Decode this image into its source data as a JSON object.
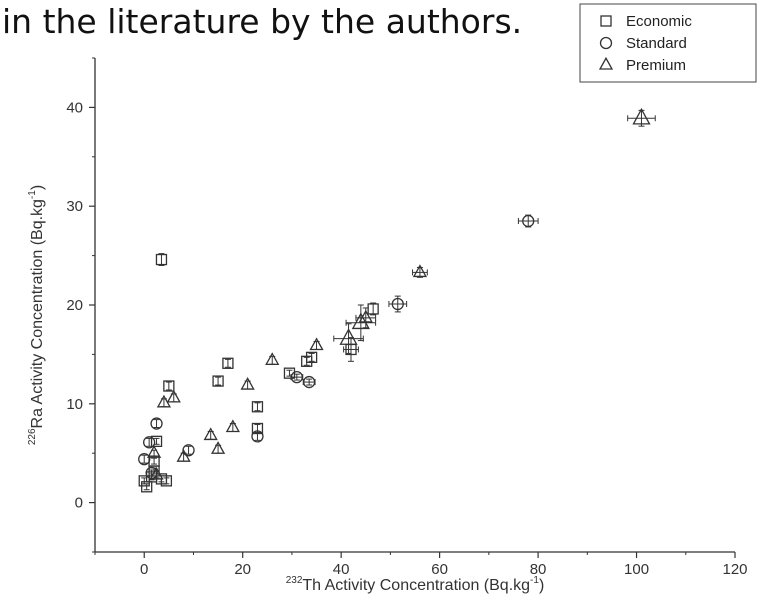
{
  "page": {
    "caption": "in the literature by the authors."
  },
  "chart_data": {
    "type": "scatter",
    "xlabel": {
      "sup": "232",
      "text": "Th Activity Concentration (Bq.kg",
      "unit_sup": "-1",
      "close": ")"
    },
    "ylabel": {
      "sup": "226",
      "text": "Ra Activity Concentration (Bq.kg",
      "unit_sup": "-1",
      "close": ")"
    },
    "xlim": [
      -10,
      120
    ],
    "ylim": [
      -5,
      45
    ],
    "xticks": [
      0,
      20,
      40,
      60,
      80,
      100,
      120
    ],
    "yticks": [
      0,
      10,
      20,
      30,
      40
    ],
    "legend_position": "top-right",
    "series": [
      {
        "name": "Economic",
        "marker": "square",
        "points": [
          {
            "x": 3.5,
            "y": 24.6,
            "ey": 0.6
          },
          {
            "x": 5,
            "y": 11.8,
            "ey": 0.4
          },
          {
            "x": 17,
            "y": 14.1,
            "ey": 0.4
          },
          {
            "x": 15,
            "y": 12.3,
            "ey": 0.4
          },
          {
            "x": 23,
            "y": 9.7,
            "ey": 0.4
          },
          {
            "x": 23,
            "y": 7.5,
            "ey": 0.4
          },
          {
            "x": 29.5,
            "y": 13.1,
            "ey": 0.3
          },
          {
            "x": 33,
            "y": 14.3,
            "ey": 0.4
          },
          {
            "x": 34,
            "y": 14.7,
            "ey": 0.4
          },
          {
            "x": 42,
            "y": 15.5,
            "ey": 1.2,
            "ex": 1.5
          },
          {
            "x": 46.5,
            "y": 19.6,
            "ey": 0.6
          },
          {
            "x": 2.5,
            "y": 6.2,
            "ey": 0.3
          },
          {
            "x": 2,
            "y": 4.2,
            "ey": 0.3
          },
          {
            "x": 2,
            "y": 3.2,
            "ey": 0.3
          },
          {
            "x": 3.5,
            "y": 2.4,
            "ey": 0.3
          },
          {
            "x": 4.5,
            "y": 2.2,
            "ey": 0.3
          },
          {
            "x": 0.5,
            "y": 1.6,
            "ey": 0.3
          },
          {
            "x": 0,
            "y": 2.2,
            "ey": 0.3
          },
          {
            "x": 1.5,
            "y": 2.6,
            "ey": 0.3
          }
        ]
      },
      {
        "name": "Standard",
        "marker": "circle",
        "points": [
          {
            "x": 1,
            "y": 6.1,
            "ey": 0.4
          },
          {
            "x": 0,
            "y": 4.4,
            "ey": 0.4
          },
          {
            "x": 2.5,
            "y": 8.0,
            "ey": 0.4
          },
          {
            "x": 9,
            "y": 5.3,
            "ey": 0.4
          },
          {
            "x": 23,
            "y": 6.7,
            "ey": 0.4
          },
          {
            "x": 31,
            "y": 12.7,
            "ey": 0.3,
            "ex": 1.2
          },
          {
            "x": 33.5,
            "y": 12.2,
            "ey": 0.3,
            "ex": 1.2
          },
          {
            "x": 51.5,
            "y": 20.1,
            "ey": 0.8,
            "ex": 1.8
          },
          {
            "x": 78,
            "y": 28.5,
            "ey": 0.6,
            "ex": 2.0
          },
          {
            "x": 1.5,
            "y": 3.0,
            "ey": 0.3
          }
        ]
      },
      {
        "name": "Premium",
        "marker": "triangle",
        "points": [
          {
            "x": 4,
            "y": 10.1,
            "ey": 0.4
          },
          {
            "x": 6,
            "y": 10.6,
            "ey": 0.4
          },
          {
            "x": 8,
            "y": 4.6,
            "ey": 0.4
          },
          {
            "x": 13.5,
            "y": 6.8,
            "ey": 0.4
          },
          {
            "x": 15,
            "y": 5.4,
            "ey": 0.4
          },
          {
            "x": 18,
            "y": 7.6,
            "ey": 0.4
          },
          {
            "x": 21,
            "y": 11.9,
            "ey": 0.4
          },
          {
            "x": 26,
            "y": 14.4,
            "ey": 0.4
          },
          {
            "x": 35,
            "y": 15.9,
            "ey": 0.4
          },
          {
            "x": 41.5,
            "y": 16.6,
            "ey": 1.5,
            "ex": 3.0
          },
          {
            "x": 44,
            "y": 18.2,
            "ey": 1.8,
            "ex": 3.0
          },
          {
            "x": 45,
            "y": 18.7,
            "ey": 1.0,
            "ex": 2.0
          },
          {
            "x": 56,
            "y": 23.3,
            "ey": 0.5,
            "ex": 1.5
          },
          {
            "x": 101,
            "y": 38.9,
            "ey": 0.8,
            "ex": 2.8
          },
          {
            "x": 2,
            "y": 5.0,
            "ey": 0.3
          },
          {
            "x": 2.5,
            "y": 2.8,
            "ey": 0.3
          }
        ]
      }
    ]
  }
}
